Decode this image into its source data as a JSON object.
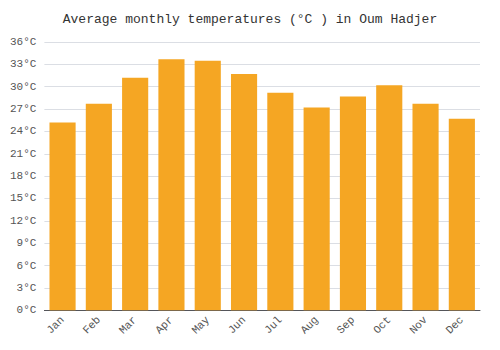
{
  "chart_data": {
    "type": "bar",
    "title": "Average monthly temperatures (°C ) in Oum Hadjer",
    "categories": [
      "Jan",
      "Feb",
      "Mar",
      "Apr",
      "May",
      "Jun",
      "Jul",
      "Aug",
      "Sep",
      "Oct",
      "Nov",
      "Dec"
    ],
    "values": [
      25.2,
      27.7,
      31.2,
      33.7,
      33.5,
      31.7,
      29.2,
      27.2,
      28.7,
      30.2,
      27.7,
      25.7
    ],
    "color": "#F5A623",
    "ylim": [
      0,
      36
    ],
    "yticks": [
      {
        "value": 0,
        "label": "0°C"
      },
      {
        "value": 3,
        "label": "3°C"
      },
      {
        "value": 6,
        "label": "6°C"
      },
      {
        "value": 9,
        "label": "9°C"
      },
      {
        "value": 12,
        "label": "12°C"
      },
      {
        "value": 15,
        "label": "15°C"
      },
      {
        "value": 18,
        "label": "18°C"
      },
      {
        "value": 21,
        "label": "21°C"
      },
      {
        "value": 24,
        "label": "24°C"
      },
      {
        "value": 27,
        "label": "27°C"
      },
      {
        "value": 30,
        "label": "30°C"
      },
      {
        "value": 33,
        "label": "33°C"
      },
      {
        "value": 36,
        "label": "36°C"
      }
    ],
    "grid": true
  }
}
